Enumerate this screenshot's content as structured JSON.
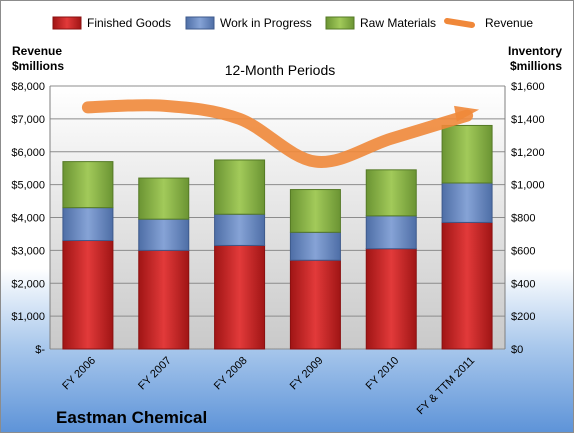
{
  "chart_data": {
    "type": "bar",
    "title": "12-Month Periods",
    "company": "Eastman Chemical",
    "left_axis_label": [
      "Revenue",
      "$millions"
    ],
    "right_axis_label": [
      "Inventory",
      "$millions"
    ],
    "categories": [
      "FY 2006",
      "FY 2007",
      "FY 2008",
      "FY 2009",
      "FY 2010",
      "FY & TTM 2011"
    ],
    "series": [
      {
        "name": "Finished Goods",
        "axis": "right",
        "color": "#d42a2a",
        "values": [
          660,
          600,
          630,
          540,
          610,
          770
        ]
      },
      {
        "name": "Work in Progress",
        "axis": "right",
        "color": "#6f8fc7",
        "values": [
          200,
          190,
          190,
          170,
          200,
          240
        ]
      },
      {
        "name": "Raw Materials",
        "axis": "right",
        "color": "#8fba4a",
        "values": [
          280,
          250,
          330,
          260,
          280,
          350
        ]
      },
      {
        "name": "Revenue",
        "axis": "left",
        "type": "line",
        "color": "#f0883a",
        "values": [
          7350,
          7400,
          7000,
          5700,
          6400,
          7100
        ]
      }
    ],
    "left_axis": {
      "min": 0,
      "max": 8000,
      "ticks": [
        "$-",
        "$1,000",
        "$2,000",
        "$3,000",
        "$4,000",
        "$5,000",
        "$6,000",
        "$7,000",
        "$8,000"
      ]
    },
    "right_axis": {
      "min": 0,
      "max": 1600,
      "ticks": [
        "$0",
        "$200",
        "$400",
        "$600",
        "$800",
        "$1,000",
        "$1,200",
        "$1,400",
        "$1,600"
      ]
    },
    "grid": true,
    "legend": "top"
  }
}
